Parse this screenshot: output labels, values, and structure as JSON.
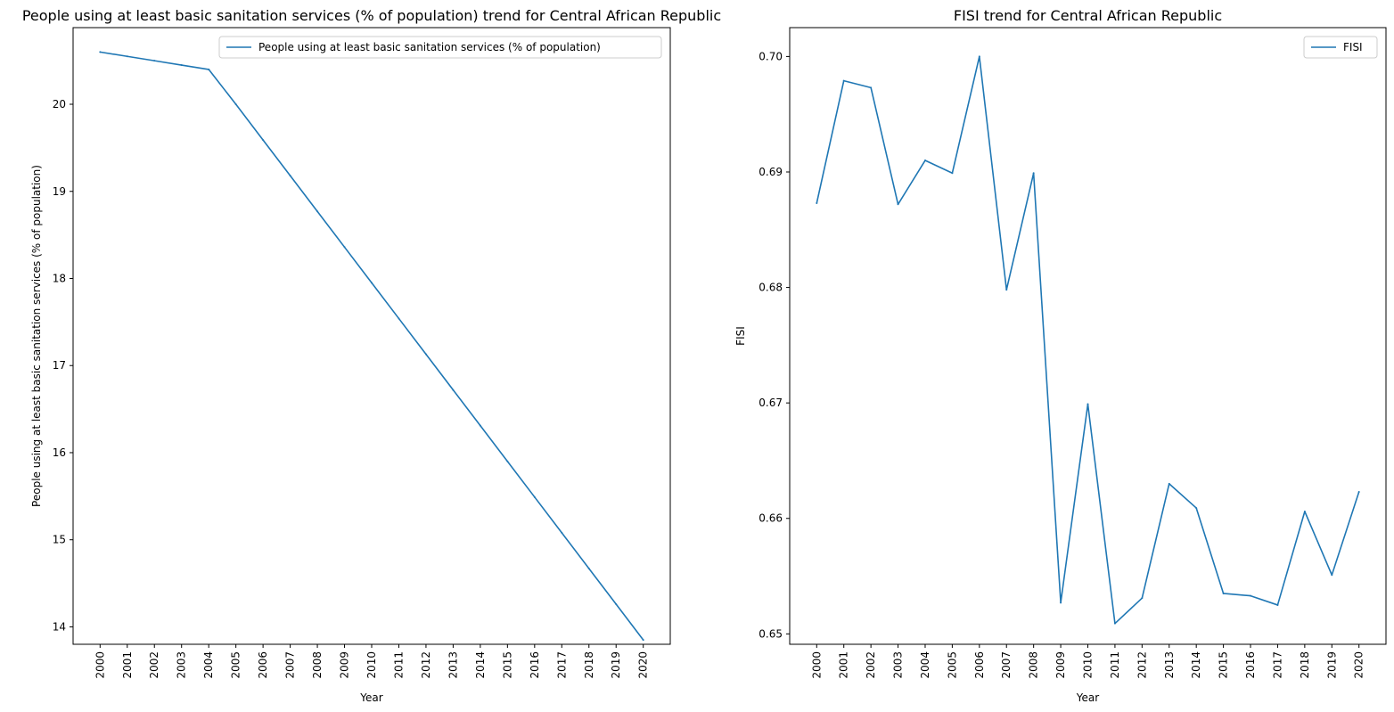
{
  "chart_data": [
    {
      "type": "line",
      "title": "People using at least basic sanitation services (% of population) trend for Central African Republic",
      "xlabel": "Year",
      "ylabel": "People using at least basic sanitation services (% of population)",
      "x": [
        "2000",
        "2001",
        "2002",
        "2003",
        "2004",
        "2005",
        "2006",
        "2007",
        "2008",
        "2009",
        "2010",
        "2011",
        "2012",
        "2013",
        "2014",
        "2015",
        "2016",
        "2017",
        "2018",
        "2019",
        "2020"
      ],
      "yticks": [
        "14",
        "15",
        "16",
        "17",
        "18",
        "19",
        "20"
      ],
      "ylim": [
        13.8,
        20.88
      ],
      "series": [
        {
          "name": "People using at least basic sanitation services (% of population)",
          "color": "#1f77b4",
          "values": [
            20.6,
            20.55,
            20.5,
            20.45,
            20.4,
            20.0,
            19.59,
            19.18,
            18.77,
            18.36,
            17.95,
            17.54,
            17.13,
            16.72,
            16.31,
            15.9,
            15.49,
            15.08,
            14.67,
            14.26,
            13.85
          ]
        }
      ],
      "legend": "top-right",
      "grid": false
    },
    {
      "type": "line",
      "title": "FISI trend for Central African Republic",
      "xlabel": "Year",
      "ylabel": "FISI",
      "x": [
        "2000",
        "2001",
        "2002",
        "2003",
        "2004",
        "2005",
        "2006",
        "2007",
        "2008",
        "2009",
        "2010",
        "2011",
        "2012",
        "2013",
        "2014",
        "2015",
        "2016",
        "2017",
        "2018",
        "2019",
        "2020"
      ],
      "yticks": [
        "0.65",
        "0.66",
        "0.67",
        "0.68",
        "0.69",
        "0.70"
      ],
      "ylim": [
        0.6491,
        0.7025
      ],
      "series": [
        {
          "name": "FISI",
          "color": "#1f77b4",
          "values": [
            0.6873,
            0.6979,
            0.6973,
            0.6872,
            0.691,
            0.6899,
            0.7,
            0.6798,
            0.6899,
            0.6527,
            0.6699,
            0.6509,
            0.6531,
            0.663,
            0.6609,
            0.6535,
            0.6533,
            0.6525,
            0.6606,
            0.6551,
            0.6623
          ]
        }
      ],
      "legend": "top-right",
      "grid": false
    }
  ]
}
